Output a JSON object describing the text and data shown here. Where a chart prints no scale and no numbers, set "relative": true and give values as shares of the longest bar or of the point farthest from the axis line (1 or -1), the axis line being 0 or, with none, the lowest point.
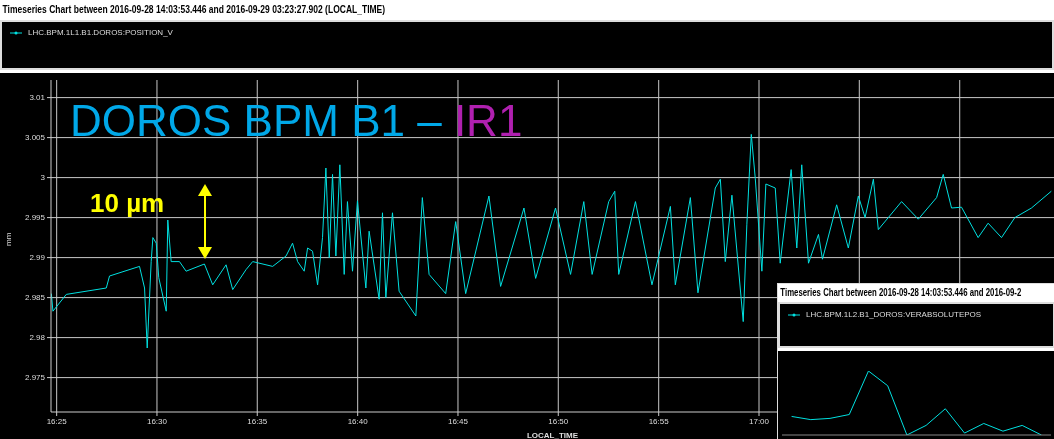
{
  "chart_data": [
    {
      "type": "line",
      "title": "Timeseries Chart between 2016-09-28 14:03:53.446 and 2016-09-29 03:23:27.902 (LOCAL_TIME)",
      "xlabel": "LOCAL_TIME",
      "ylabel": "mm",
      "annotations": [
        "DOROS BPM B1 – ",
        "IR1",
        "10 µm"
      ],
      "x": [
        16.4123,
        16.4136,
        16.4247,
        16.4579,
        16.4606,
        16.4855,
        16.4897,
        16.4919,
        16.4952,
        16.4966,
        16.4994,
        16.5015,
        16.5077,
        16.509,
        16.5118,
        16.5187,
        16.5242,
        16.5394,
        16.5463,
        16.5574,
        16.5629,
        16.574,
        16.5795,
        16.5961,
        16.6072,
        16.6126,
        16.6168,
        16.6223,
        16.6251,
        16.6292,
        16.6334,
        16.6375,
        16.6403,
        16.6431,
        16.6458,
        16.6486,
        16.6519,
        16.6555,
        16.6582,
        16.6624,
        16.6665,
        16.6735,
        16.6762,
        16.6845,
        16.6873,
        16.6901,
        16.6956,
        16.7011,
        16.715,
        16.7204,
        16.726,
        16.7398,
        16.7481,
        16.7564,
        16.7757,
        16.7854,
        16.8048,
        16.8145,
        16.831,
        16.8435,
        16.8545,
        16.8614,
        16.8752,
        16.8802,
        16.8835,
        16.8974,
        16.9111,
        16.9264,
        16.9305,
        16.943,
        16.9493,
        16.9637,
        16.9679,
        16.972,
        16.9775,
        16.9869,
        16.9899,
        16.9936,
        16.9969,
        17.0024,
        17.0057,
        17.0135,
        17.0176,
        17.0267,
        17.0314,
        17.0355,
        17.0411,
        17.0494,
        17.0527,
        17.0645,
        17.0742,
        17.0825,
        17.0881,
        17.095,
        17.0991,
        17.1184,
        17.1323,
        17.1475,
        17.153,
        17.1599,
        17.1682,
        17.182,
        17.1903,
        17.2014,
        17.2125,
        17.2263,
        17.2428
      ],
      "series": [
        {
          "name": "LHC.BPM.1L1.B1.DOROS:POSITION_V",
          "color": "#00e0e0",
          "values": [
            2.9855,
            2.9833,
            2.9854,
            2.9862,
            2.9877,
            2.9889,
            2.9862,
            2.9787,
            2.9895,
            2.9925,
            2.9918,
            2.9875,
            2.9833,
            2.9947,
            2.9895,
            2.9895,
            2.9883,
            2.9892,
            2.9866,
            2.9891,
            2.986,
            2.9885,
            2.9895,
            2.9889,
            2.9902,
            2.9918,
            2.9895,
            2.9883,
            2.9912,
            2.9908,
            2.9866,
            2.9925,
            3.0012,
            2.99,
            3.0004,
            2.9902,
            3.0016,
            2.9879,
            2.997,
            2.9883,
            2.9971,
            2.9862,
            2.9933,
            2.9848,
            2.9956,
            2.985,
            2.9956,
            2.9858,
            2.9827,
            2.9975,
            2.9879,
            2.9855,
            2.9945,
            2.9855,
            2.9977,
            2.9864,
            2.9962,
            2.9874,
            2.9962,
            2.9879,
            2.997,
            2.9879,
            2.997,
            2.9983,
            2.9879,
            2.997,
            2.9866,
            2.9964,
            2.9866,
            2.9975,
            2.9856,
            2.9987,
            2.9998,
            2.9895,
            2.9978,
            2.982,
            2.9941,
            3.0054,
            2.9999,
            2.9883,
            2.9992,
            2.9987,
            2.9893,
            3.001,
            2.9912,
            3.0016,
            2.9893,
            2.9929,
            2.9898,
            2.9966,
            2.9912,
            2.9977,
            2.995,
            2.9998,
            2.9935,
            2.997,
            2.9948,
            2.9975,
            3.0004,
            2.9962,
            2.9963,
            2.9925,
            2.9943,
            2.9925,
            2.995,
            2.9962,
            2.9983
          ]
        }
      ],
      "xlim": [
        16.412,
        17.245
      ],
      "xticks": [
        {
          "value": 16.4167,
          "label": "16:25"
        },
        {
          "value": 16.5,
          "label": "16:30"
        },
        {
          "value": 16.5833,
          "label": "16:35"
        },
        {
          "value": 16.6667,
          "label": "16:40"
        },
        {
          "value": 16.75,
          "label": "16:45"
        },
        {
          "value": 16.8333,
          "label": "16:50"
        },
        {
          "value": 16.9167,
          "label": "16:55"
        },
        {
          "value": 17,
          "label": "17:00"
        },
        {
          "value": 17.0833,
          "label": null
        },
        {
          "value": 17.1667,
          "label": null
        }
      ],
      "ylim": [
        2.9707,
        3.0122
      ],
      "yticks": [
        2.975,
        2.98,
        2.985,
        2.99,
        2.995,
        3,
        3.005,
        3.01
      ],
      "grid": true,
      "legend": "top"
    },
    {
      "type": "line",
      "title": "Timeseries Chart between 2016-09-28 14:03:53.446 and 2016-09-2",
      "relative": true,
      "categories": [
        null,
        null,
        null,
        null,
        null,
        null,
        null,
        null,
        null,
        null,
        null,
        null,
        null,
        null
      ],
      "series": [
        {
          "name": "LHC.BPM.1L2.B1_DOROS:VERABSOLUTEPOS",
          "color": "#00e0e0",
          "values": [
            0.29,
            0.24,
            0.26,
            0.32,
            1,
            0.77,
            0,
            0.15,
            0.41,
            0.03,
            0.18,
            0.06,
            0.15,
            0
          ]
        }
      ],
      "legend": "top"
    }
  ]
}
